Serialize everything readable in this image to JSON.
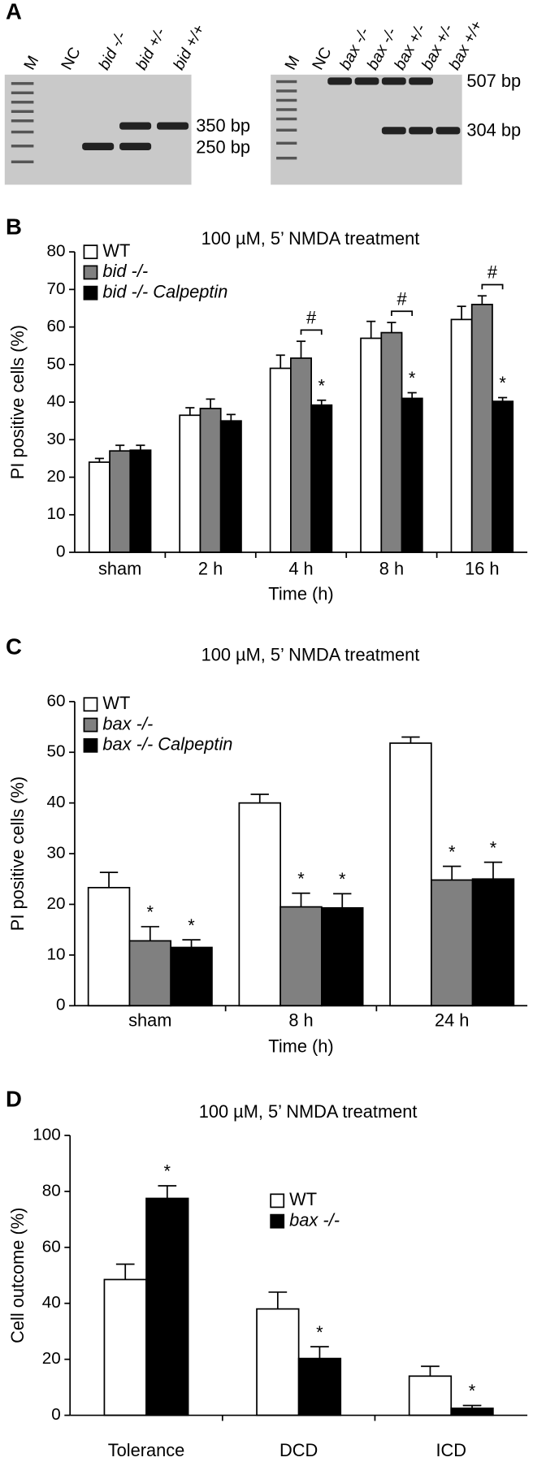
{
  "gel": {
    "panel_label": "A",
    "left_lanes": [
      "M",
      "NC",
      "bid -/-",
      "bid +/-",
      "bid +/+"
    ],
    "left_bands": [
      "350 bp",
      "250 bp"
    ],
    "right_lanes": [
      "M",
      "NC",
      "bax -/-",
      "bax -/-",
      "bax +/-",
      "bax +/-",
      "bax +/+"
    ],
    "right_bands": [
      "507 bp",
      "304 bp"
    ]
  },
  "chart_data": [
    {
      "type": "bar",
      "panel_label": "B",
      "title": "100 µM, 5’ NMDA treatment",
      "ylabel": "PI positive cells (%)",
      "xlabel": "Time (h)",
      "categories": [
        "sham",
        "2 h",
        "4 h",
        "8 h",
        "16 h"
      ],
      "series": [
        {
          "name": "WT",
          "color": "#ffffff",
          "values": [
            24,
            36.5,
            49,
            57,
            62
          ],
          "errors": [
            1,
            2,
            3.5,
            4.5,
            3.5
          ]
        },
        {
          "name": "bid -/-",
          "color": "#808080",
          "values": [
            27,
            38.3,
            51.7,
            58.5,
            66
          ],
          "errors": [
            1.5,
            2.5,
            4.5,
            2.7,
            2.3
          ]
        },
        {
          "name": "bid -/- Calpeptin",
          "color": "#000000",
          "values": [
            27.2,
            35,
            39.2,
            41,
            40.2
          ],
          "errors": [
            1.3,
            1.7,
            1.3,
            1.5,
            1
          ],
          "significance": [
            null,
            null,
            "*",
            "*",
            "*"
          ]
        }
      ],
      "comparison": [
        null,
        null,
        "#",
        "#",
        "#"
      ],
      "ylim": [
        0,
        80
      ],
      "yticks": [
        0,
        10,
        20,
        30,
        40,
        50,
        60,
        70,
        80
      ]
    },
    {
      "type": "bar",
      "panel_label": "C",
      "title": "100 µM, 5’ NMDA treatment",
      "ylabel": "PI positive cells (%)",
      "xlabel": "Time (h)",
      "categories": [
        "sham",
        "8 h",
        "24 h"
      ],
      "series": [
        {
          "name": "WT",
          "color": "#ffffff",
          "values": [
            23.3,
            40,
            51.8
          ],
          "errors": [
            3,
            1.7,
            1.2
          ]
        },
        {
          "name": "bax -/-",
          "color": "#808080",
          "values": [
            12.8,
            19.5,
            24.8
          ],
          "errors": [
            2.8,
            2.7,
            2.7
          ],
          "significance": [
            "*",
            "*",
            "*"
          ]
        },
        {
          "name": "bax -/- Calpeptin",
          "color": "#000000",
          "values": [
            11.5,
            19.3,
            25
          ],
          "errors": [
            1.5,
            2.8,
            3.3
          ],
          "significance": [
            "*",
            "*",
            "*"
          ]
        }
      ],
      "ylim": [
        0,
        60
      ],
      "yticks": [
        0,
        10,
        20,
        30,
        40,
        50,
        60
      ]
    },
    {
      "type": "bar",
      "panel_label": "D",
      "title": "100 µM, 5’ NMDA treatment",
      "ylabel": "Cell outcome (%)",
      "categories": [
        "Tolerance",
        "DCD",
        "ICD"
      ],
      "series": [
        {
          "name": "WT",
          "color": "#ffffff",
          "values": [
            48.5,
            38,
            14
          ],
          "errors": [
            5.5,
            6,
            3.5
          ]
        },
        {
          "name": "bax -/-",
          "color": "#000000",
          "values": [
            77.5,
            20.3,
            2.5
          ],
          "errors": [
            4.5,
            4.2,
            1
          ],
          "significance": [
            "*",
            "*",
            "*"
          ]
        }
      ],
      "ylim": [
        0,
        100
      ],
      "yticks": [
        0,
        20,
        40,
        60,
        80,
        100
      ]
    }
  ]
}
